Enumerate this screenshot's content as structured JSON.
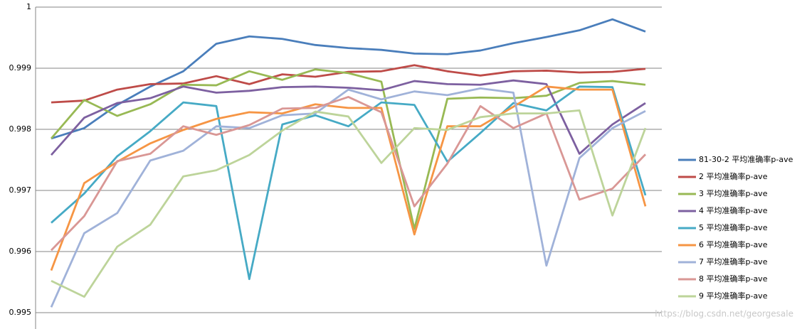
{
  "chart_data": {
    "type": "line",
    "categories": [
      null,
      null,
      null,
      null,
      null,
      null,
      null,
      null,
      null,
      null,
      null,
      null,
      null,
      null,
      null,
      null,
      null,
      null,
      null
    ],
    "ylim": [
      0.995,
      1
    ],
    "yticks": [
      0.995,
      0.996,
      0.997,
      0.998,
      0.999,
      1
    ],
    "grid": true,
    "watermark": "https://blog.csdn.net/georgesale",
    "series": [
      {
        "name": "81-30-2 平均准确率p-ave",
        "color": "#4a7ebb",
        "values": [
          0.99785,
          0.99802,
          0.9984,
          0.9987,
          0.99895,
          0.9994,
          0.99952,
          0.99948,
          0.99938,
          0.99933,
          0.9993,
          0.99924,
          0.99923,
          0.99929,
          0.99941,
          0.99951,
          0.99962,
          0.9998,
          0.9996
        ]
      },
      {
        "name": "2 平均准确率p-ave",
        "color": "#be4b48",
        "values": [
          0.99844,
          0.99847,
          0.99865,
          0.99874,
          0.99875,
          0.99887,
          0.99874,
          0.9989,
          0.99886,
          0.99894,
          0.99895,
          0.99905,
          0.99895,
          0.99888,
          0.99895,
          0.99896,
          0.99893,
          0.99894,
          0.99899
        ]
      },
      {
        "name": "3 平均准确率p-ave",
        "color": "#98b954",
        "values": [
          0.99785,
          0.99848,
          0.99822,
          0.99841,
          0.99873,
          0.99872,
          0.99895,
          0.99881,
          0.99898,
          0.99892,
          0.99878,
          0.99637,
          0.9985,
          0.99852,
          0.99851,
          0.99855,
          0.99876,
          0.99879,
          0.99873
        ]
      },
      {
        "name": "4 平均准确率p-ave",
        "color": "#7d60a0",
        "values": [
          0.99758,
          0.99819,
          0.99843,
          0.99851,
          0.9987,
          0.9986,
          0.99863,
          0.99869,
          0.9987,
          0.99868,
          0.99864,
          0.99879,
          0.99874,
          0.99873,
          0.9988,
          0.99874,
          0.9976,
          0.99808,
          0.99843
        ]
      },
      {
        "name": "5 平均准确率p-ave",
        "color": "#46aac5",
        "values": [
          0.99647,
          0.99695,
          0.99756,
          0.99797,
          0.99844,
          0.99838,
          0.99555,
          0.99808,
          0.99823,
          0.99805,
          0.99844,
          0.9984,
          0.99747,
          0.99794,
          0.99843,
          0.99831,
          0.9987,
          0.99869,
          0.99692
        ]
      },
      {
        "name": "6 平均准确率p-ave",
        "color": "#f69544",
        "values": [
          0.99569,
          0.99712,
          0.99747,
          0.99777,
          0.99799,
          0.99817,
          0.99828,
          0.99826,
          0.99841,
          0.99835,
          0.99835,
          0.99628,
          0.99805,
          0.99805,
          0.99837,
          0.9987,
          0.99865,
          0.99865,
          0.99674
        ]
      },
      {
        "name": "7 平均准确率p-ave",
        "color": "#a0b2d9",
        "values": [
          0.99509,
          0.9963,
          0.99663,
          0.99749,
          0.99765,
          0.99805,
          0.99802,
          0.99823,
          0.99826,
          0.99865,
          0.99849,
          0.99862,
          0.99856,
          0.99867,
          0.9986,
          0.99577,
          0.99753,
          0.99802,
          0.9983
        ]
      },
      {
        "name": "8 平均准确率p-ave",
        "color": "#d99795",
        "values": [
          0.99602,
          0.99658,
          0.99748,
          0.9976,
          0.99805,
          0.99791,
          0.99807,
          0.99834,
          0.99835,
          0.99853,
          0.99828,
          0.99674,
          0.99744,
          0.99838,
          0.99802,
          0.99826,
          0.99685,
          0.99703,
          0.99759
        ]
      },
      {
        "name": "9 平均准确率p-ave",
        "color": "#bdd49a",
        "values": [
          0.99552,
          0.99526,
          0.99608,
          0.99644,
          0.99723,
          0.99733,
          0.99758,
          0.99798,
          0.99829,
          0.99821,
          0.99745,
          0.99802,
          0.99799,
          0.9982,
          0.99826,
          0.99826,
          0.99831,
          0.99659,
          0.99802
        ]
      }
    ]
  }
}
